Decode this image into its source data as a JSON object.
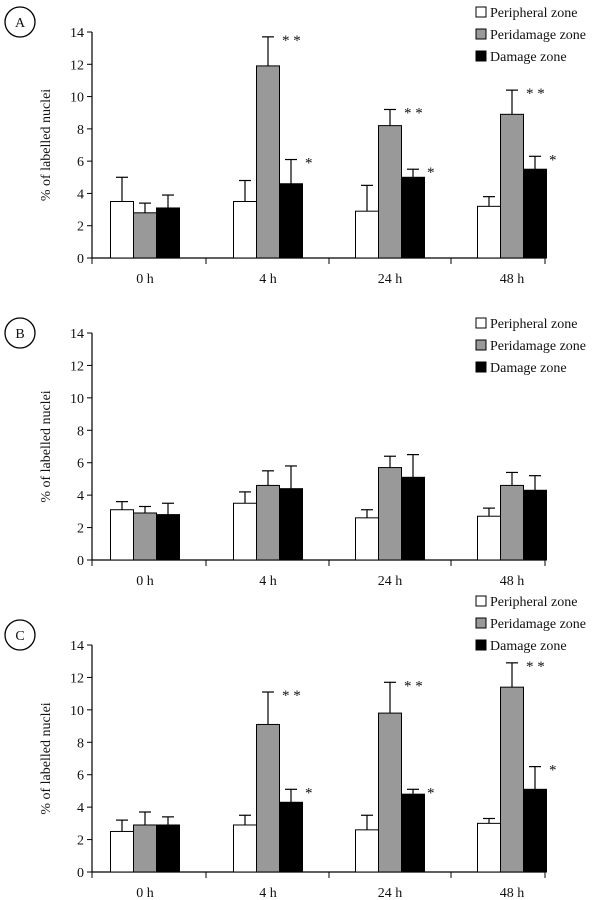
{
  "colors": {
    "peripheral": "#ffffff",
    "peridamage": "#999999",
    "damage": "#000000"
  },
  "chart_data": [
    {
      "type": "bar",
      "panel": "A",
      "ylabel": "% of labelled nuclei",
      "ylim": [
        0,
        14
      ],
      "yticks": [
        "0",
        "2",
        "4",
        "6",
        "8",
        "10",
        "12",
        "14"
      ],
      "categories": [
        "0 h",
        "4 h",
        "24 h",
        "48 h"
      ],
      "legend": [
        "Peripheral zone",
        "Peridamage zone",
        "Damage zone"
      ],
      "series": [
        {
          "name": "Peripheral zone",
          "values": [
            3.5,
            3.5,
            2.9,
            3.2
          ],
          "errors": [
            1.5,
            1.3,
            1.6,
            0.6
          ],
          "marks": [
            "",
            "",
            "",
            ""
          ]
        },
        {
          "name": "Peridamage zone",
          "values": [
            2.8,
            11.9,
            8.2,
            8.9
          ],
          "errors": [
            0.6,
            1.8,
            1.0,
            1.5
          ],
          "marks": [
            "",
            "* *",
            "* *",
            "* *"
          ]
        },
        {
          "name": "Damage zone",
          "values": [
            3.1,
            4.6,
            5.0,
            5.5
          ],
          "errors": [
            0.8,
            1.5,
            0.5,
            0.8
          ],
          "marks": [
            "",
            "*",
            "*",
            "*"
          ]
        }
      ]
    },
    {
      "type": "bar",
      "panel": "B",
      "ylabel": "% of labelled nuclei",
      "ylim": [
        0,
        14
      ],
      "yticks": [
        "0",
        "2",
        "4",
        "6",
        "8",
        "10",
        "12",
        "14"
      ],
      "categories": [
        "0 h",
        "4 h",
        "24 h",
        "48 h"
      ],
      "legend": [
        "Peripheral zone",
        "Peridamage zone",
        "Damage zone"
      ],
      "series": [
        {
          "name": "Peripheral zone",
          "values": [
            3.1,
            3.5,
            2.6,
            2.7
          ],
          "errors": [
            0.5,
            0.7,
            0.5,
            0.5
          ],
          "marks": [
            "",
            "",
            "",
            ""
          ]
        },
        {
          "name": "Peridamage zone",
          "values": [
            2.9,
            4.6,
            5.7,
            4.6
          ],
          "errors": [
            0.4,
            0.9,
            0.7,
            0.8
          ],
          "marks": [
            "",
            "",
            "",
            ""
          ]
        },
        {
          "name": "Damage zone",
          "values": [
            2.8,
            4.4,
            5.1,
            4.3
          ],
          "errors": [
            0.7,
            1.4,
            1.4,
            0.9
          ],
          "marks": [
            "",
            "",
            "",
            ""
          ]
        }
      ]
    },
    {
      "type": "bar",
      "panel": "C",
      "ylabel": "% of labelled nuclei",
      "ylim": [
        0,
        14
      ],
      "yticks": [
        "0",
        "2",
        "4",
        "6",
        "8",
        "10",
        "12",
        "14"
      ],
      "categories": [
        "0 h",
        "4 h",
        "24 h",
        "48 h"
      ],
      "legend": [
        "Peripheral zone",
        "Peridamage zone",
        "Damage zone"
      ],
      "series": [
        {
          "name": "Peripheral zone",
          "values": [
            2.5,
            2.9,
            2.6,
            3.0
          ],
          "errors": [
            0.7,
            0.6,
            0.9,
            0.3
          ],
          "marks": [
            "",
            "",
            "",
            ""
          ]
        },
        {
          "name": "Peridamage zone",
          "values": [
            2.9,
            9.1,
            9.8,
            11.4
          ],
          "errors": [
            0.8,
            2.0,
            1.9,
            1.5
          ],
          "marks": [
            "",
            "* *",
            "* *",
            "* *"
          ]
        },
        {
          "name": "Damage zone",
          "values": [
            2.9,
            4.3,
            4.8,
            5.1
          ],
          "errors": [
            0.5,
            0.8,
            0.3,
            1.4
          ],
          "marks": [
            "",
            "*",
            "*",
            "*"
          ]
        }
      ]
    }
  ]
}
